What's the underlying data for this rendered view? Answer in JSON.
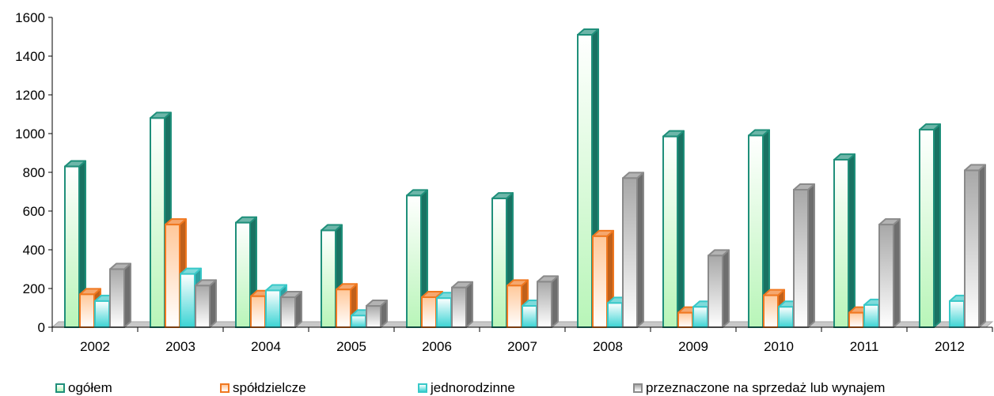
{
  "chart_data": {
    "type": "bar",
    "categories": [
      "2002",
      "2003",
      "2004",
      "2005",
      "2006",
      "2007",
      "2008",
      "2009",
      "2010",
      "2011",
      "2012"
    ],
    "series": [
      {
        "name": "ogółem",
        "values": [
          830,
          1080,
          540,
          500,
          680,
          665,
          1510,
          985,
          990,
          865,
          1020
        ],
        "border": "#1f8f7a",
        "fill_top": "#ffffff",
        "fill_bottom": "#b8f5b8"
      },
      {
        "name": "spółdzielcze",
        "values": [
          170,
          530,
          160,
          195,
          155,
          215,
          470,
          75,
          165,
          75,
          0
        ],
        "border": "#f07820",
        "fill_top": "#ffc89a",
        "fill_bottom": "#ffffff"
      },
      {
        "name": "jednorodzinne",
        "values": [
          135,
          275,
          190,
          60,
          150,
          110,
          125,
          105,
          105,
          115,
          135
        ],
        "border": "#38c8c8",
        "fill_top": "#ffffff",
        "fill_bottom": "#3ad4d4"
      },
      {
        "name": "przeznaczone na sprzedaż lub wynajem",
        "values": [
          300,
          215,
          155,
          110,
          205,
          235,
          770,
          370,
          710,
          530,
          810
        ],
        "border": "#8a8a8a",
        "fill_top": "#a8a8a8",
        "fill_bottom": "#ffffff"
      }
    ],
    "y_ticks": [
      "0",
      "200",
      "400",
      "600",
      "800",
      "1000",
      "1200",
      "1400",
      "1600"
    ],
    "ylim": [
      0,
      1600
    ],
    "grid": false,
    "legend_position": "bottom"
  }
}
